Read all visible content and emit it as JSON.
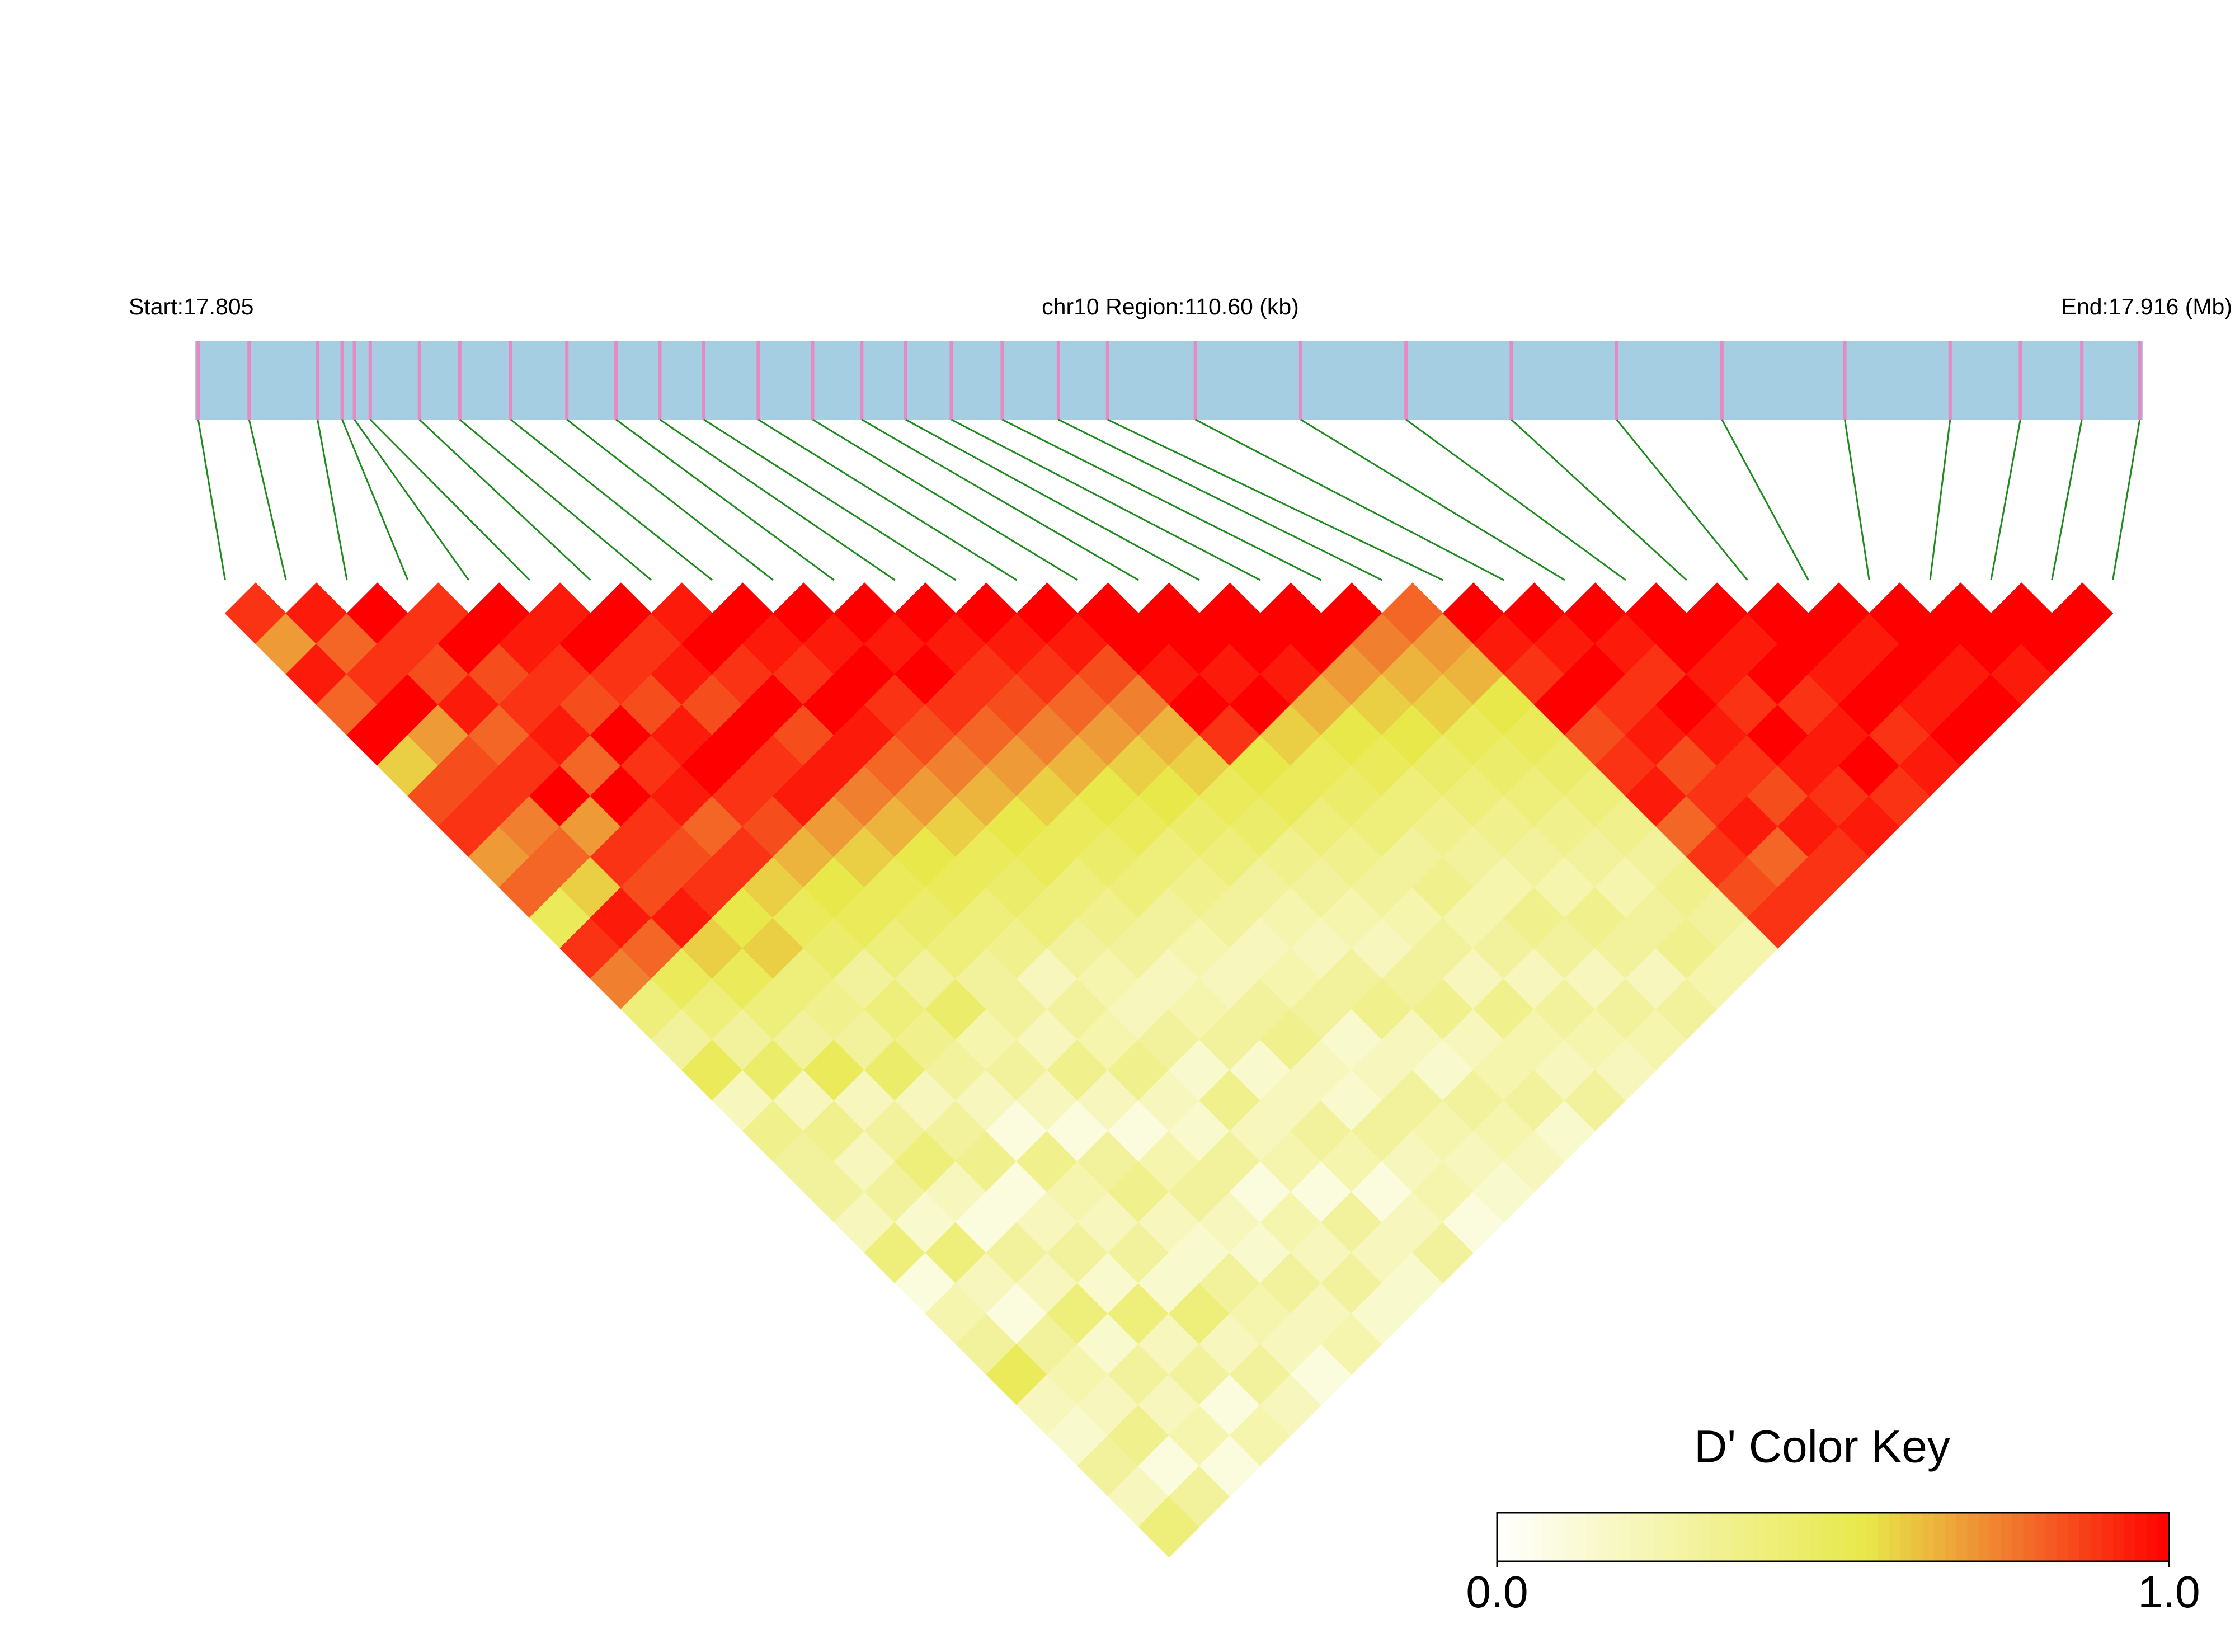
{
  "chart_data": {
    "type": "ld_heatmap",
    "start_label": "Start:17.805",
    "region_label": "chr10 Region:110.60 (kb)",
    "end_label": "End:17.916 (Mb)",
    "xlim": [
      17.805,
      17.916
    ],
    "positions": [
      17.8052,
      17.8081,
      17.812,
      17.8134,
      17.8141,
      17.815,
      17.8178,
      17.8201,
      17.823,
      17.8262,
      17.829,
      17.8315,
      17.834,
      17.8371,
      17.8402,
      17.843,
      17.8455,
      17.8481,
      17.851,
      17.8542,
      17.857,
      17.862,
      17.868,
      17.874,
      17.88,
      17.886,
      17.892,
      17.899,
      17.905,
      17.909,
      17.9125,
      17.9158
    ],
    "track_color": "#a6cee3",
    "snp_color": "#e78ac3",
    "line_color": "#1f8a1f",
    "dprime": [
      [
        0.9,
        0.7,
        0.95,
        0.8,
        1,
        0.6,
        0.85,
        0.9,
        0.7,
        0.8,
        0.5,
        0.9,
        0.75,
        0.4,
        0.3,
        0.5,
        0.2,
        0.35,
        0.3,
        0.3,
        0.2,
        0.4,
        0.1,
        0.25,
        0.3,
        0.5,
        0.2,
        0.15,
        0.3,
        0.2,
        0.4
      ],
      [
        0.95,
        0.8,
        0.9,
        1,
        0.7,
        0.85,
        0.9,
        0.75,
        0.8,
        0.6,
        0.95,
        0.8,
        0.5,
        0.4,
        0.3,
        0.45,
        0.2,
        0.35,
        0.2,
        0.3,
        0.15,
        0.4,
        0.2,
        0.1,
        0.3,
        0.25,
        0.2,
        0.35,
        0.1,
        0.3
      ],
      [
        1,
        0.9,
        0.85,
        0.95,
        0.8,
        0.9,
        1,
        0.7,
        0.9,
        0.85,
        0.95,
        0.6,
        0.5,
        0.4,
        0.3,
        0.5,
        0.2,
        0.3,
        0.4,
        0.2,
        0.1,
        0.3,
        0.2,
        0.4,
        0.15,
        0.3,
        0.2,
        0.25,
        0.1
      ],
      [
        0.9,
        1,
        0.85,
        0.9,
        0.95,
        0.8,
        1,
        0.9,
        0.85,
        0.9,
        0.55,
        0.6,
        0.4,
        0.35,
        0.3,
        0.45,
        0.2,
        0.3,
        0.35,
        0.1,
        0.2,
        0.3,
        0.15,
        0.4,
        0.2,
        0.3,
        0.1,
        0.25
      ],
      [
        1,
        0.95,
        0.9,
        0.85,
        1,
        0.9,
        0.95,
        0.8,
        0.9,
        0.6,
        0.5,
        0.45,
        0.3,
        0.4,
        0.35,
        0.3,
        0.2,
        0.1,
        0.35,
        0.25,
        0.2,
        0.3,
        0.15,
        0.4,
        0.2,
        0.3,
        0.2
      ],
      [
        0.95,
        1,
        0.9,
        0.85,
        0.95,
        1,
        0.9,
        0.85,
        0.65,
        0.55,
        0.5,
        0.4,
        0.3,
        0.45,
        0.25,
        0.3,
        0.2,
        0.1,
        0.3,
        0.35,
        0.2,
        0.15,
        0.3,
        0.25,
        0.2,
        0.1
      ],
      [
        1,
        0.9,
        0.95,
        0.85,
        1,
        0.9,
        0.95,
        0.7,
        0.6,
        0.5,
        0.45,
        0.4,
        0.3,
        0.3,
        0.2,
        0.35,
        0.2,
        0.1,
        0.25,
        0.3,
        0.2,
        0.15,
        0.3,
        0.2,
        0.25
      ],
      [
        0.95,
        1,
        0.9,
        1,
        0.85,
        0.95,
        0.75,
        0.65,
        0.55,
        0.5,
        0.4,
        0.35,
        0.2,
        0.3,
        0.25,
        0.35,
        0.2,
        0.15,
        0.3,
        0.1,
        0.25,
        0.2,
        0.3,
        0.15
      ],
      [
        1,
        0.95,
        0.9,
        1,
        0.95,
        0.8,
        0.7,
        0.6,
        0.5,
        0.45,
        0.4,
        0.3,
        0.25,
        0.2,
        0.3,
        0.15,
        0.35,
        0.2,
        0.25,
        0.1,
        0.3,
        0.2,
        0.15
      ],
      [
        1,
        0.95,
        1,
        0.9,
        0.85,
        0.75,
        0.65,
        0.55,
        0.5,
        0.4,
        0.35,
        0.3,
        0.2,
        0.25,
        0.3,
        0.15,
        0.2,
        0.3,
        0.25,
        0.1,
        0.2,
        0.3
      ],
      [
        1,
        0.95,
        1,
        0.9,
        0.8,
        0.7,
        0.6,
        0.5,
        0.45,
        0.4,
        0.3,
        0.25,
        0.2,
        0.3,
        0.35,
        0.2,
        0.15,
        0.3,
        0.2,
        0.25,
        0.1
      ],
      [
        1,
        0.95,
        0.9,
        0.85,
        0.75,
        0.65,
        0.55,
        0.5,
        0.4,
        0.35,
        0.3,
        0.2,
        0.25,
        0.3,
        0.15,
        0.2,
        0.3,
        0.25,
        0.2,
        0.15
      ],
      [
        1,
        0.95,
        0.9,
        0.8,
        0.7,
        0.6,
        0.55,
        0.45,
        0.4,
        0.3,
        0.25,
        0.2,
        0.3,
        0.35,
        0.2,
        0.15,
        0.3,
        0.25,
        0.2
      ],
      [
        1,
        0.95,
        0.85,
        0.75,
        0.65,
        0.6,
        0.5,
        0.45,
        0.35,
        0.3,
        0.25,
        0.2,
        0.3,
        0.35,
        0.2,
        0.25,
        0.3,
        0.15
      ],
      [
        1,
        1,
        0.95,
        1,
        0.9,
        0.55,
        0.5,
        0.4,
        0.35,
        0.3,
        0.25,
        0.3,
        0.2,
        0.35,
        0.25,
        0.2,
        0.3
      ],
      [
        1,
        1,
        0.95,
        1,
        0.6,
        0.5,
        0.45,
        0.4,
        0.3,
        0.35,
        0.25,
        0.3,
        0.2,
        0.3,
        0.25,
        0.2
      ],
      [
        1,
        1,
        0.95,
        0.65,
        0.55,
        0.5,
        0.4,
        0.35,
        0.3,
        0.25,
        0.35,
        0.3,
        0.2,
        0.3,
        0.25
      ],
      [
        1,
        1,
        0.7,
        0.6,
        0.55,
        0.45,
        0.4,
        0.35,
        0.3,
        0.25,
        0.35,
        0.3,
        0.2,
        0.3
      ],
      [
        1,
        0.75,
        0.65,
        0.6,
        0.5,
        0.45,
        0.4,
        0.35,
        0.3,
        0.25,
        0.3,
        0.35,
        0.25
      ],
      [
        0.8,
        0.7,
        0.65,
        0.55,
        0.5,
        0.45,
        0.4,
        0.35,
        0.3,
        0.35,
        0.3,
        0.25
      ],
      [
        1,
        0.95,
        0.9,
        1,
        0.85,
        0.9,
        0.95,
        0.8,
        0.9,
        0.85,
        0.9
      ],
      [
        1,
        0.95,
        1,
        0.9,
        0.95,
        0.85,
        0.9,
        0.95,
        0.8,
        0.9
      ],
      [
        1,
        0.95,
        0.9,
        1,
        0.95,
        0.9,
        0.85,
        0.95,
        0.9
      ],
      [
        1,
        1,
        0.95,
        0.9,
        1,
        0.95,
        0.9,
        0.95
      ],
      [
        1,
        0.95,
        1,
        0.9,
        0.95,
        1,
        0.9
      ],
      [
        1,
        1,
        0.95,
        1,
        0.9,
        0.95
      ],
      [
        1,
        0.95,
        1,
        0.95,
        1
      ],
      [
        1,
        1,
        0.95,
        1
      ],
      [
        1,
        1,
        0.95
      ],
      [
        1,
        1
      ],
      [
        1
      ]
    ],
    "color_stops": [
      {
        "value": 0,
        "color": "#ffffff"
      },
      {
        "value": 0.55,
        "color": "#e8e84a"
      },
      {
        "value": 0.75,
        "color": "#f08030"
      },
      {
        "value": 1,
        "color": "#ff0000"
      }
    ],
    "key_title": "D' Color Key",
    "key_ticks": [
      {
        "value": 0,
        "label": "0.0"
      },
      {
        "value": 1,
        "label": "1.0"
      }
    ]
  }
}
